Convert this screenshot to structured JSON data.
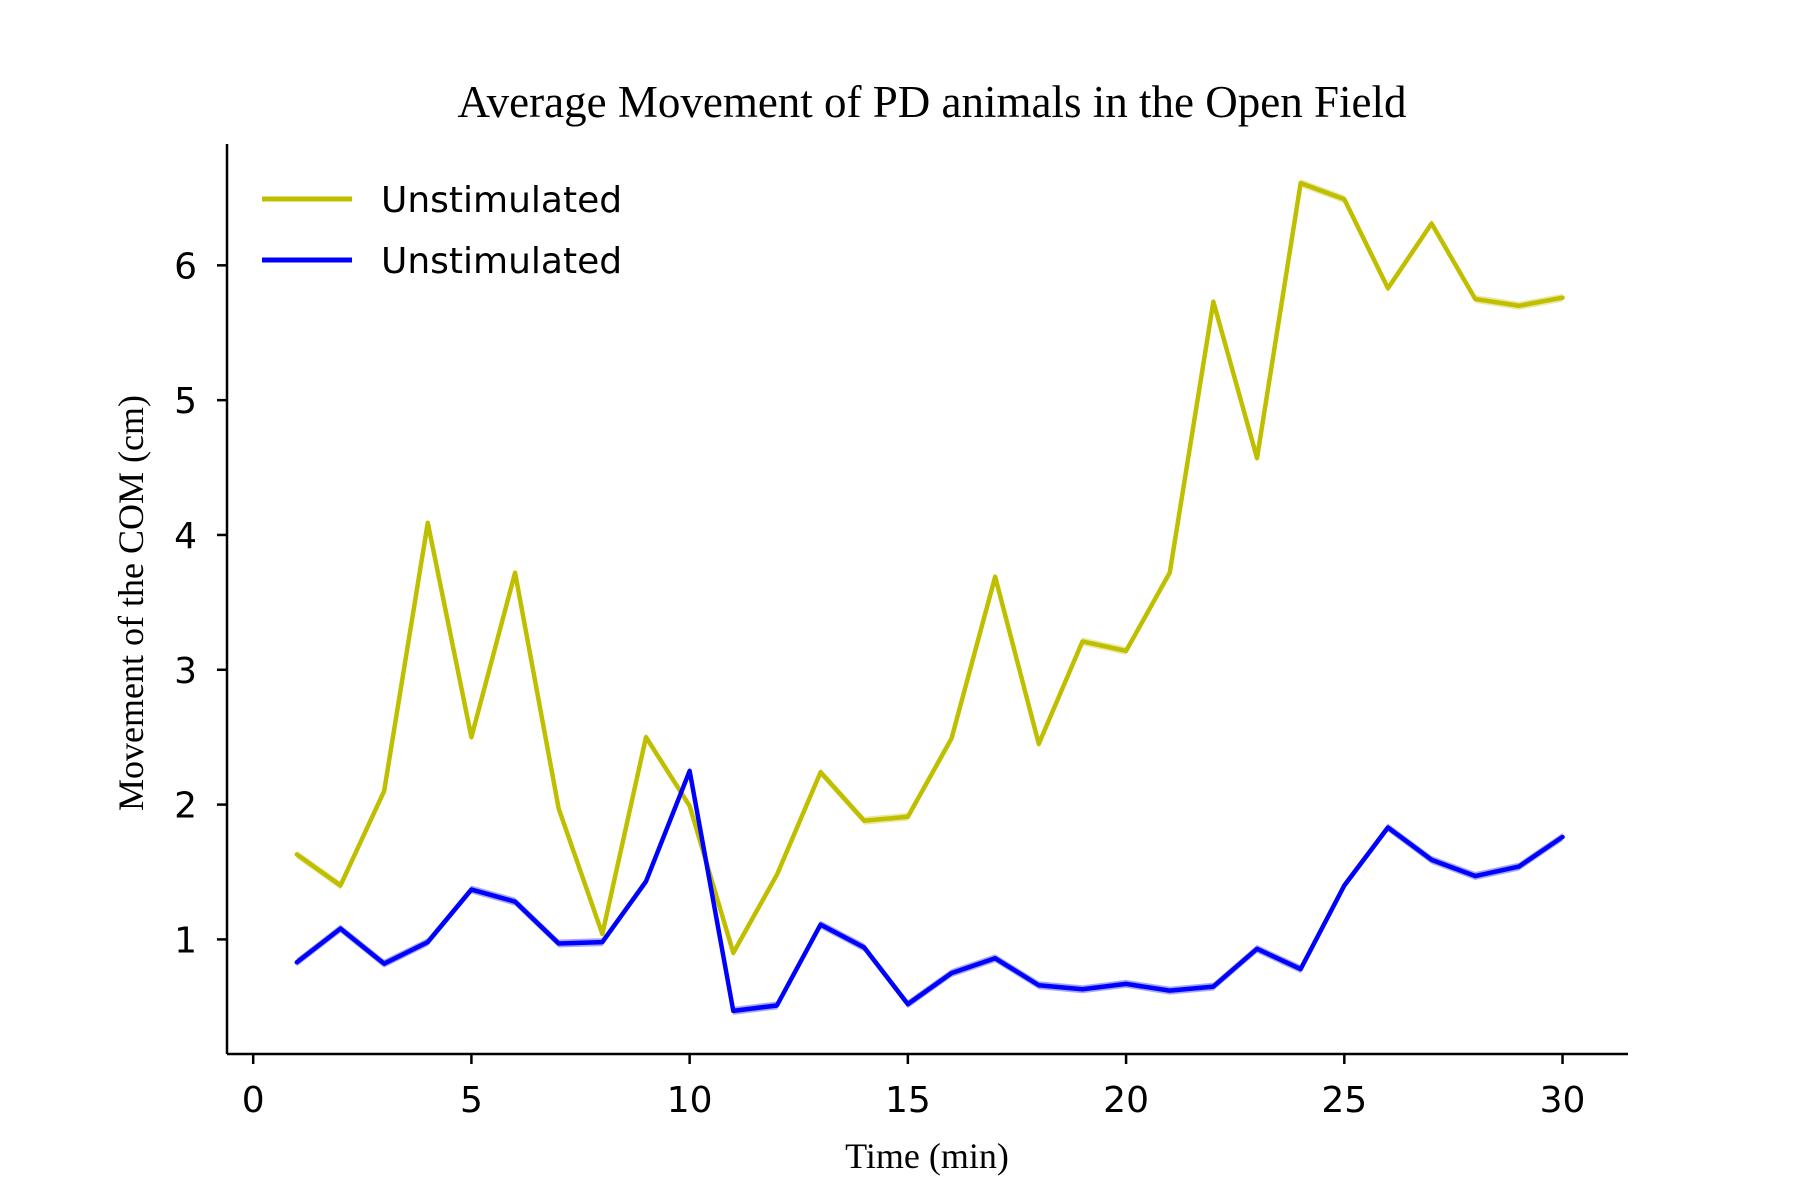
{
  "chart_data": {
    "type": "line",
    "title": "Average Movement of PD animals in the Open Field",
    "xlabel": "Time (min)",
    "ylabel": "Movement of the COM (cm)",
    "xlim": [
      -0.6,
      31.5
    ],
    "ylim": [
      0.15,
      6.9
    ],
    "xticks": [
      0,
      5,
      10,
      15,
      20,
      25,
      30
    ],
    "yticks": [
      1,
      2,
      3,
      4,
      5,
      6
    ],
    "grid": false,
    "legend_position": "top-left",
    "x": [
      1,
      2,
      3,
      4,
      5,
      6,
      7,
      8,
      9,
      10,
      11,
      12,
      13,
      14,
      15,
      16,
      17,
      18,
      19,
      20,
      21,
      22,
      23,
      24,
      25,
      26,
      27,
      28,
      29,
      30
    ],
    "series": [
      {
        "name": "Unstimulated",
        "color": "#bfbf00",
        "values": [
          1.63,
          1.4,
          2.1,
          4.09,
          2.5,
          3.72,
          1.97,
          1.04,
          2.5,
          1.99,
          0.9,
          1.48,
          2.24,
          1.88,
          1.91,
          2.49,
          3.69,
          2.45,
          3.21,
          3.14,
          3.72,
          5.73,
          4.57,
          6.61,
          6.49,
          5.83,
          6.31,
          5.75,
          5.7,
          5.76
        ]
      },
      {
        "name": "Unstimulated",
        "color": "#0000ff",
        "values": [
          0.83,
          1.08,
          0.82,
          0.98,
          1.37,
          1.28,
          0.97,
          0.98,
          1.43,
          2.25,
          0.47,
          0.51,
          1.11,
          0.94,
          0.52,
          0.75,
          0.86,
          0.66,
          0.63,
          0.67,
          0.62,
          0.65,
          0.93,
          0.78,
          1.4,
          1.83,
          1.59,
          1.47,
          1.54,
          1.76
        ]
      }
    ]
  }
}
